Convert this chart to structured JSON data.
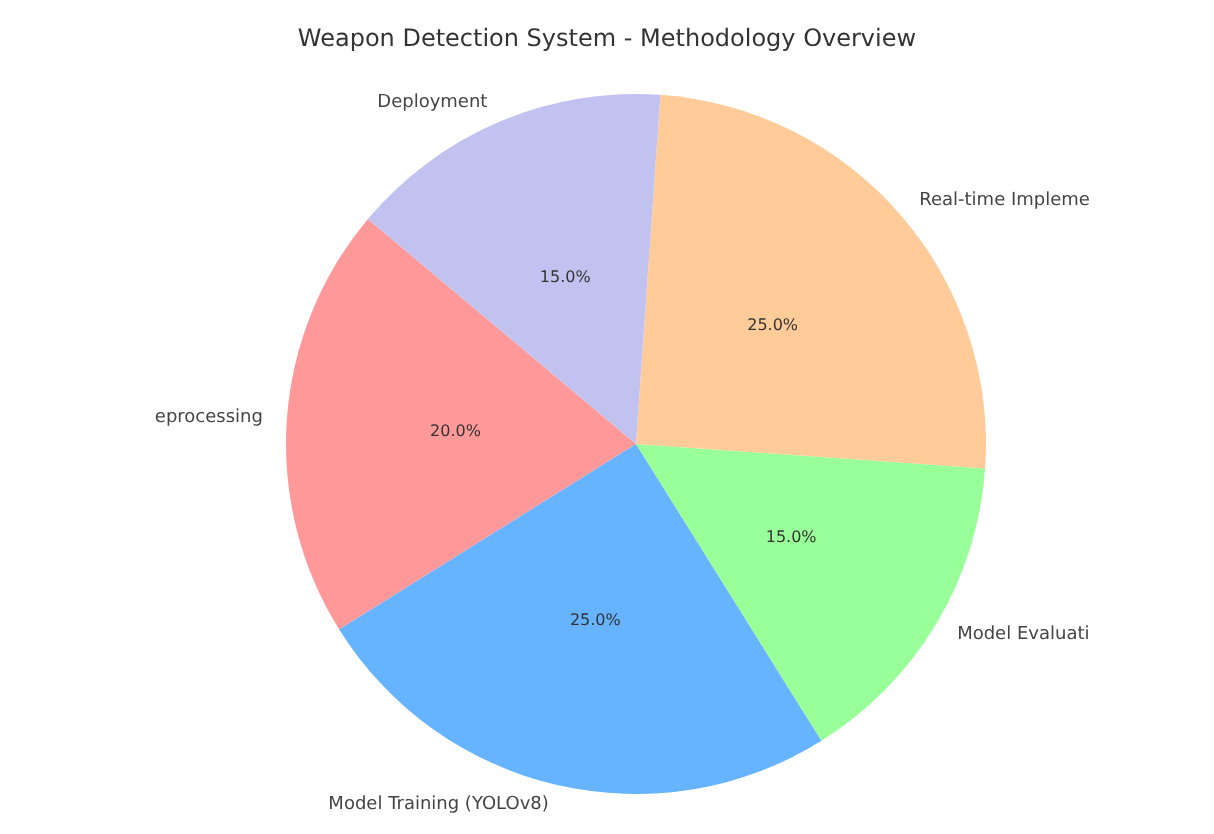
{
  "chart_data": {
    "type": "pie",
    "title": "Weapon Detection System - Methodology Overview",
    "categories": [
      "eprocessing",
      "Model Training (YOLOv8)",
      "Model Evaluati",
      "Real-time Impleme",
      "Deployment"
    ],
    "values": [
      20,
      25,
      15,
      25,
      15
    ],
    "value_labels": [
      "20.0%",
      "25.0%",
      "15.0%",
      "25.0%",
      "15.0%"
    ],
    "colors": [
      "#ff9999",
      "#66b3ff",
      "#99ff99",
      "#ffcc99",
      "#c2c2f0"
    ],
    "legend": false
  }
}
